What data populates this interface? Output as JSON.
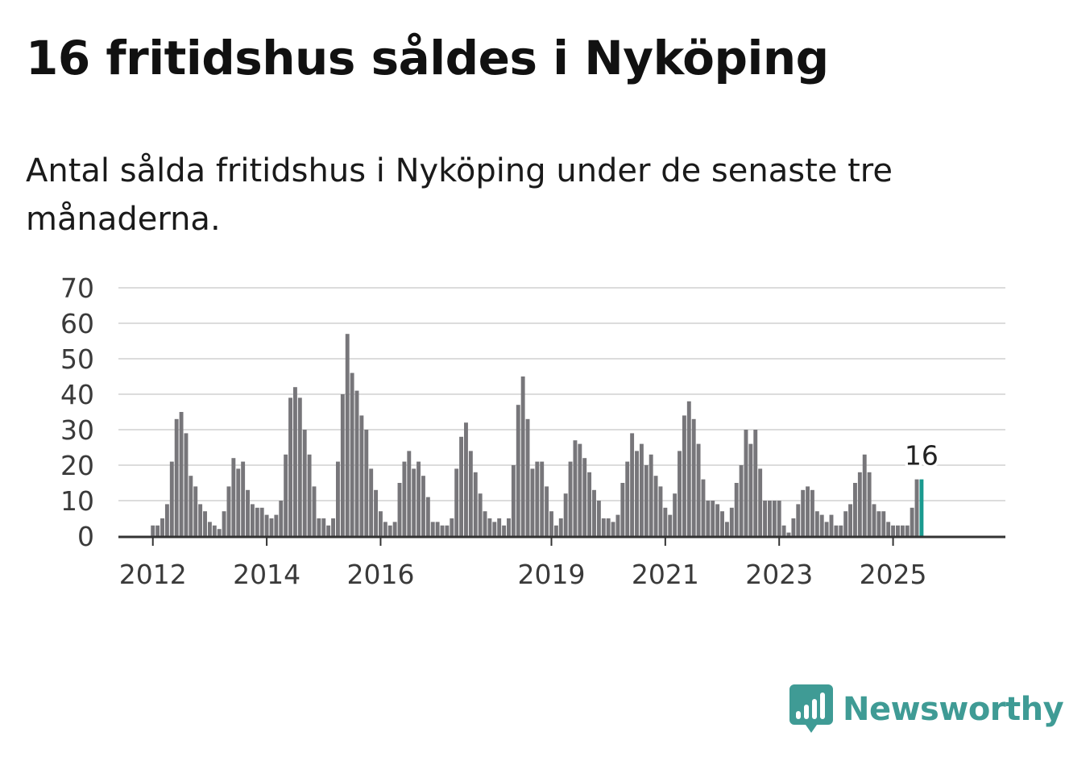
{
  "title": "16 fritidshus såldes i Nyköping",
  "subtitle": "Antal sålda fritidshus i Nyköping under de senaste tre månaderna.",
  "brand": {
    "name": "Newsworthy",
    "icon": "bar-chart-speech-bubble-icon",
    "color": "#3f9b95"
  },
  "colors": {
    "bar": "#77767a",
    "highlight": "#1a9a8f",
    "grid": "#dcdcdc",
    "axis": "#333333"
  },
  "chart_data": {
    "type": "bar",
    "start": "2011-11",
    "ylim": [
      0,
      70
    ],
    "y_ticks": [
      0,
      10,
      20,
      30,
      40,
      50,
      60,
      70
    ],
    "x_ticks": [
      {
        "label": "2012",
        "month": "2012-01"
      },
      {
        "label": "2014",
        "month": "2014-01"
      },
      {
        "label": "2016",
        "month": "2016-01"
      },
      {
        "label": "2019",
        "month": "2019-01"
      },
      {
        "label": "2021",
        "month": "2021-01"
      },
      {
        "label": "2023",
        "month": "2023-01"
      },
      {
        "label": "2025",
        "month": "2025-01"
      }
    ],
    "values": [
      0,
      0,
      3,
      3,
      5,
      9,
      21,
      33,
      35,
      29,
      17,
      14,
      9,
      7,
      4,
      3,
      2,
      7,
      14,
      22,
      19,
      21,
      13,
      9,
      8,
      8,
      6,
      5,
      6,
      10,
      23,
      39,
      42,
      39,
      30,
      23,
      14,
      5,
      5,
      3,
      5,
      21,
      40,
      57,
      46,
      41,
      34,
      30,
      19,
      13,
      7,
      4,
      3,
      4,
      15,
      21,
      24,
      19,
      21,
      17,
      11,
      4,
      4,
      3,
      3,
      5,
      19,
      28,
      32,
      24,
      18,
      12,
      7,
      5,
      4,
      5,
      3,
      5,
      20,
      37,
      45,
      33,
      19,
      21,
      21,
      14,
      7,
      3,
      5,
      12,
      21,
      27,
      26,
      22,
      18,
      13,
      10,
      5,
      5,
      4,
      6,
      15,
      21,
      29,
      24,
      26,
      20,
      23,
      17,
      14,
      8,
      6,
      12,
      24,
      34,
      38,
      33,
      26,
      16,
      10,
      10,
      9,
      7,
      4,
      8,
      15,
      20,
      30,
      26,
      30,
      19,
      10,
      10,
      10,
      10,
      3,
      1,
      5,
      9,
      13,
      14,
      13,
      7,
      6,
      4,
      6,
      3,
      3,
      7,
      9,
      15,
      18,
      23,
      18,
      9,
      7,
      7,
      4,
      3,
      3,
      3,
      3,
      8,
      16,
      16
    ],
    "highlight_index": 164,
    "highlight_label": "16"
  }
}
